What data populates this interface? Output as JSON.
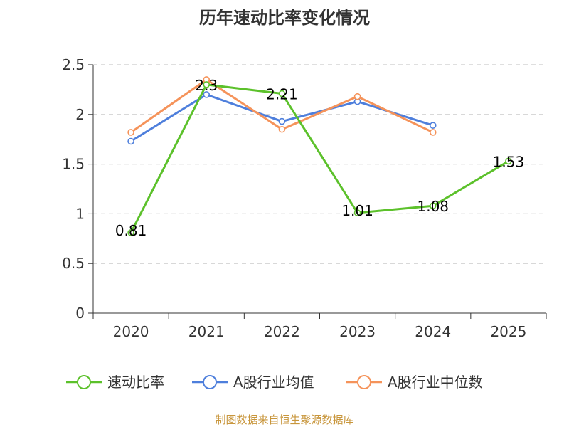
{
  "chart_data": {
    "type": "line",
    "title": "历年速动比率变化情况",
    "categories": [
      "2020",
      "2021",
      "2022",
      "2023",
      "2024",
      "2025"
    ],
    "ylim": [
      0,
      2.5
    ],
    "yticks": [
      "0",
      "0.5",
      "1",
      "1.5",
      "2",
      "2.5"
    ],
    "ytick_values": [
      0,
      0.5,
      1,
      1.5,
      2,
      2.5
    ],
    "grid": true,
    "legend_position": "bottom",
    "series": [
      {
        "name": "速动比率",
        "color": "#5cc12b",
        "values": [
          0.81,
          2.3,
          2.21,
          1.01,
          1.08,
          1.53
        ],
        "data_labels": [
          "0.81",
          "2.3",
          "2.21",
          "1.01",
          "1.08",
          "1.53"
        ]
      },
      {
        "name": "A股行业均值",
        "color": "#4e7fdc",
        "values": [
          1.73,
          2.2,
          1.93,
          2.13,
          1.89,
          null
        ]
      },
      {
        "name": "A股行业中位数",
        "color": "#f5935a",
        "values": [
          1.82,
          2.35,
          1.85,
          2.18,
          1.82,
          null
        ]
      }
    ]
  },
  "source": "制图数据来自恒生聚源数据库"
}
